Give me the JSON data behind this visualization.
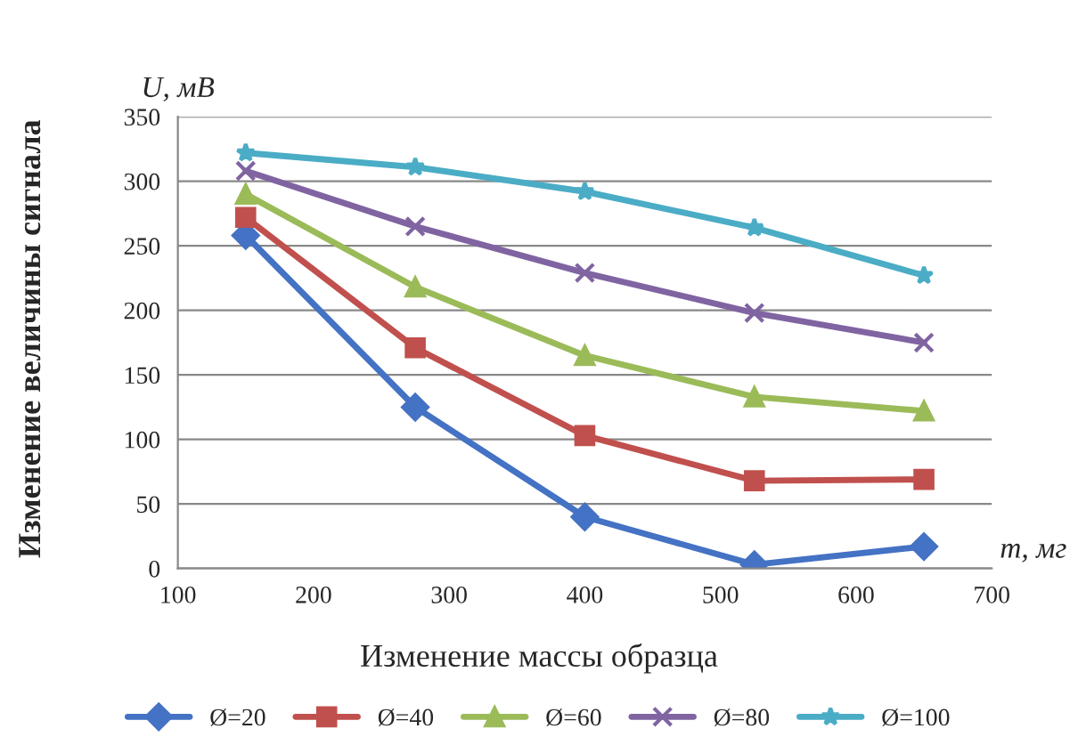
{
  "chart_data": {
    "type": "line",
    "xlabel": "Изменение массы образца",
    "ylabel": "Изменение величины сигнала",
    "annotations": [
      "U, мВ",
      "m, мг"
    ],
    "x": [
      150,
      275,
      400,
      525,
      650
    ],
    "series": [
      {
        "name": "Ø=20",
        "color": "#4472c4",
        "marker": "diamond",
        "values": [
          258,
          125,
          40,
          3,
          17
        ]
      },
      {
        "name": "Ø=40",
        "color": "#c0504d",
        "marker": "square",
        "values": [
          272,
          171,
          103,
          68,
          69
        ]
      },
      {
        "name": "Ø=60",
        "color": "#9bbb59",
        "marker": "triangle",
        "values": [
          290,
          218,
          165,
          133,
          122
        ]
      },
      {
        "name": "Ø=80",
        "color": "#8064a2",
        "marker": "cross",
        "values": [
          308,
          265,
          229,
          198,
          175
        ]
      },
      {
        "name": "Ø=100",
        "color": "#4bacc6",
        "marker": "star",
        "values": [
          322,
          311,
          292,
          264,
          227
        ]
      }
    ],
    "xlim": [
      100,
      700
    ],
    "xticks": [
      100,
      200,
      300,
      400,
      500,
      600,
      700
    ],
    "ylim": [
      0,
      350
    ],
    "yticks": [
      0,
      50,
      100,
      150,
      200,
      250,
      300,
      350
    ],
    "grid": "y",
    "legend": "bottom",
    "line_style": "solid"
  }
}
